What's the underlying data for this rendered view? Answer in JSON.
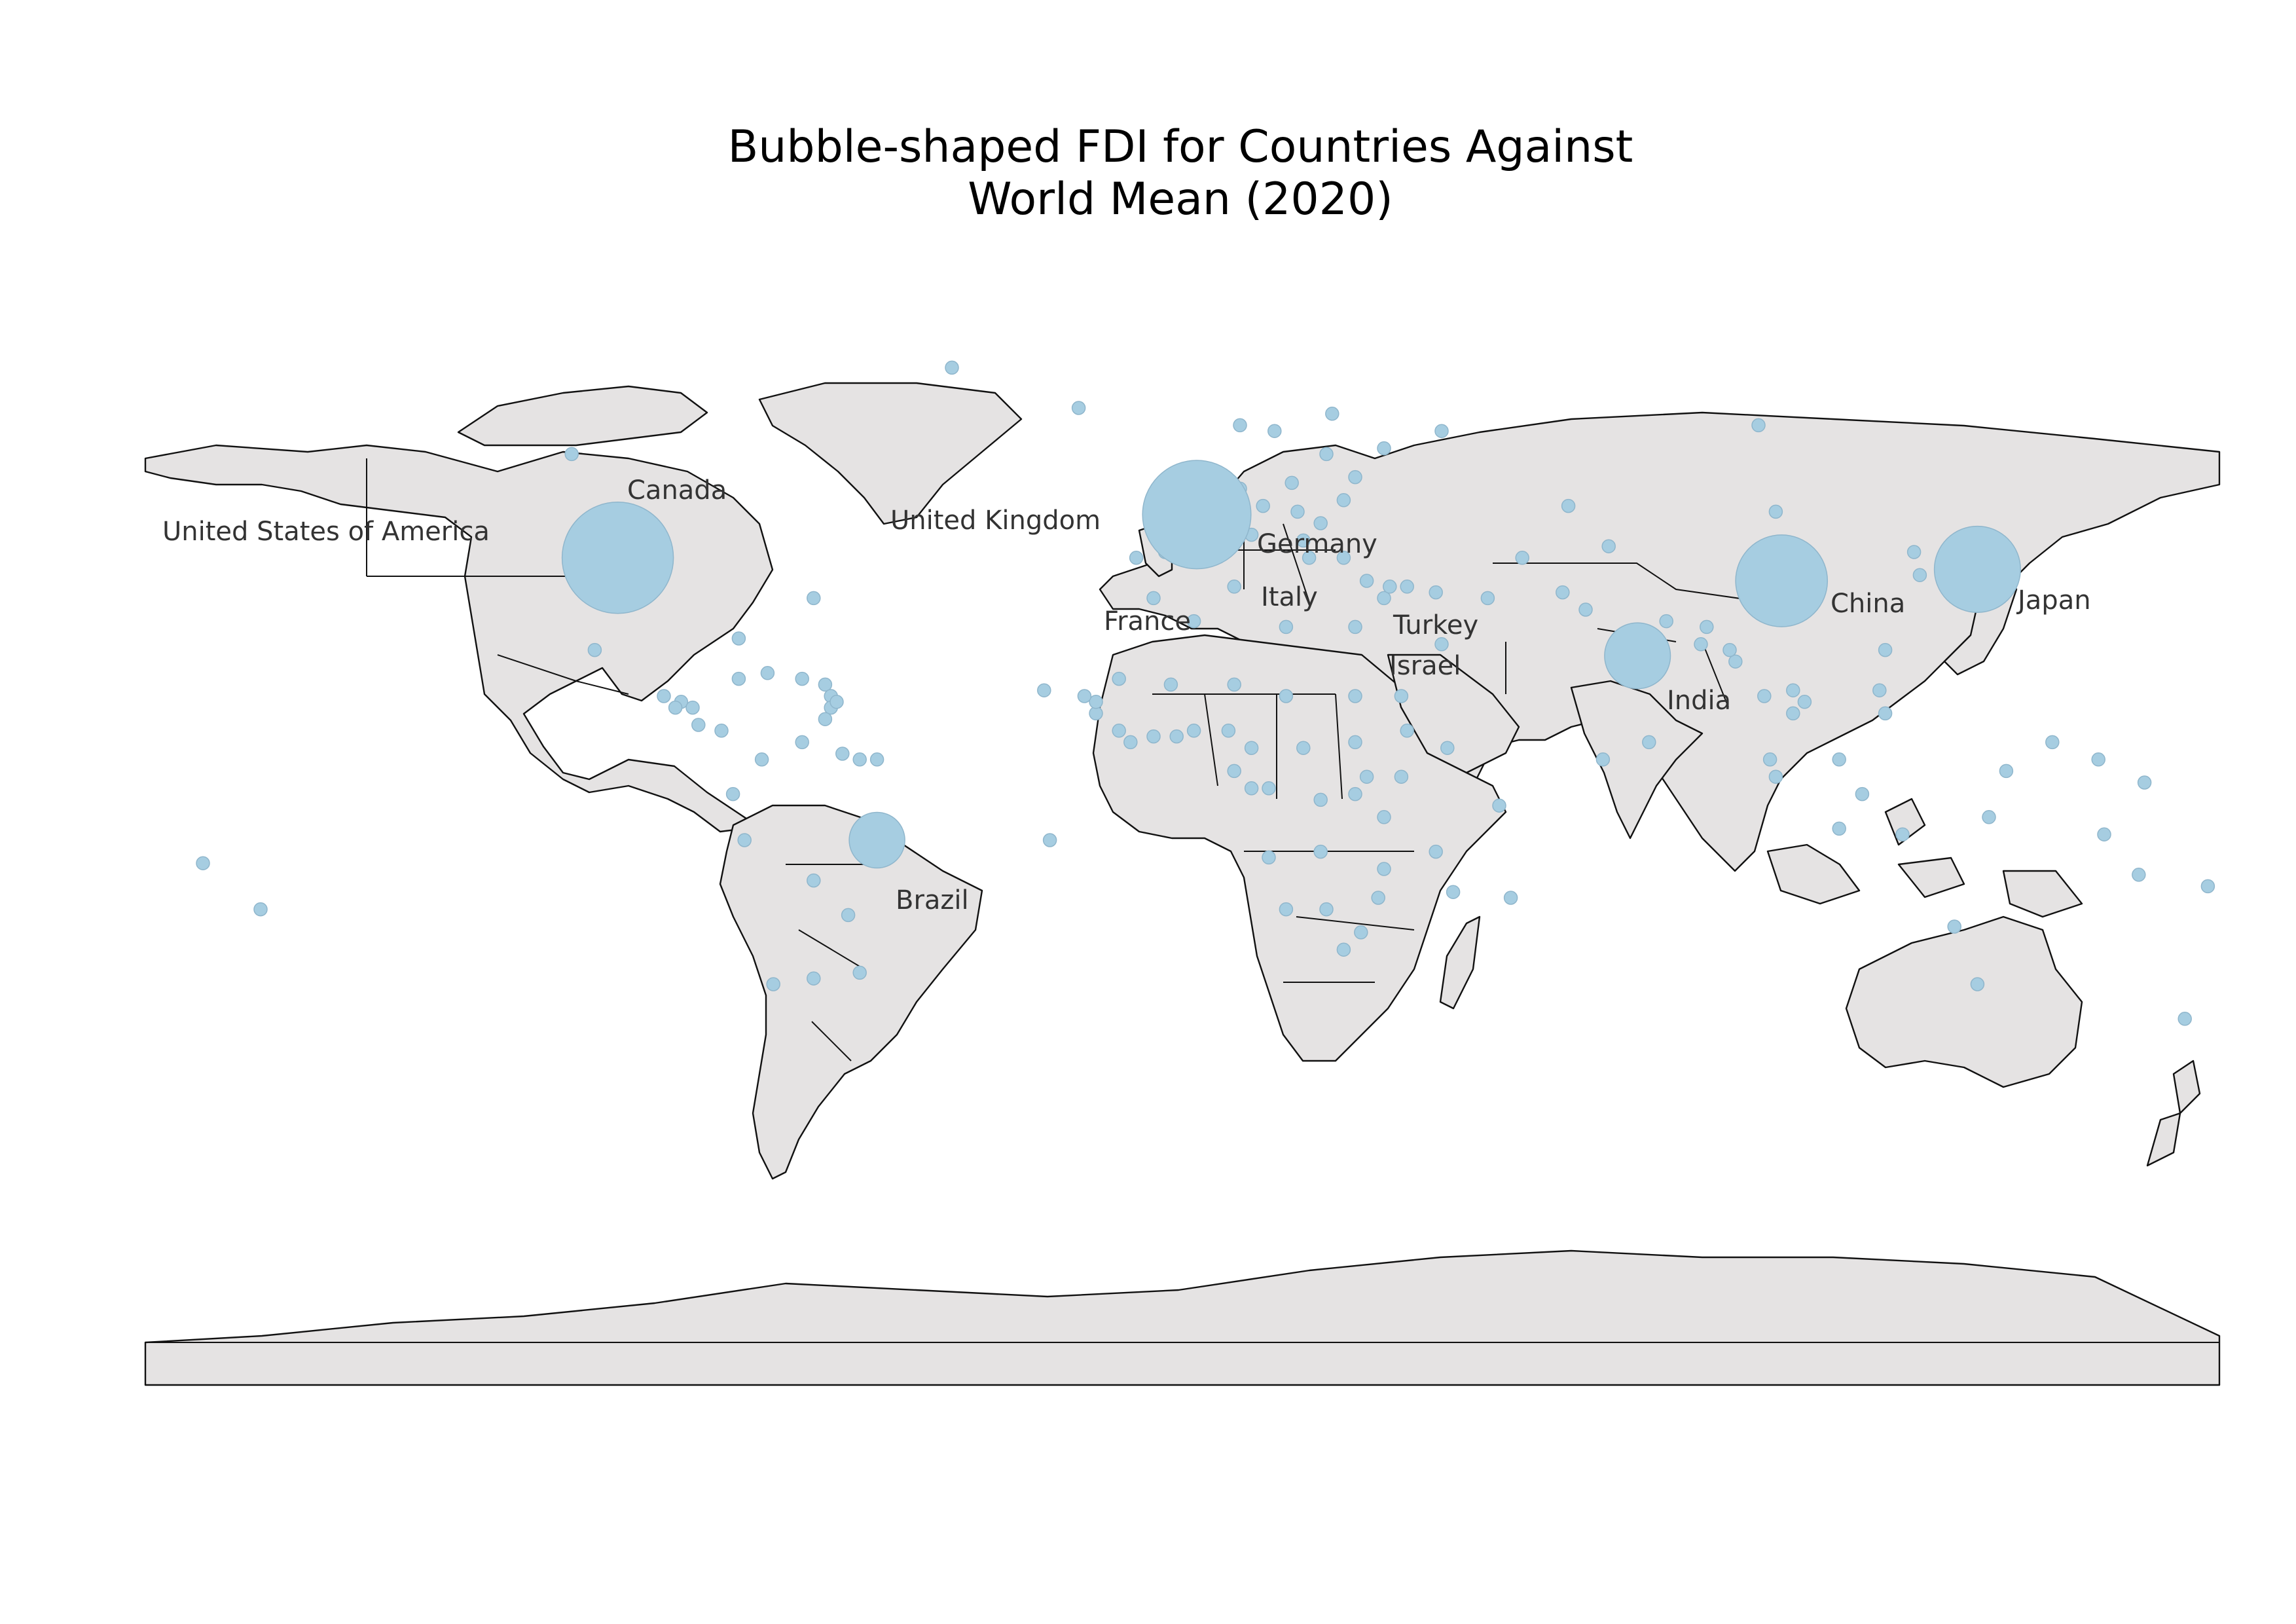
{
  "title": {
    "line1": "Bubble-shaped FDI for Countries Against",
    "line2": "World Mean (2020)"
  },
  "colors": {
    "land": "#e5e3e3",
    "border": "#111111",
    "bubble": "#a6cde1",
    "label": "#333333"
  },
  "labels": [
    {
      "key": "usa",
      "text": "United States of America"
    },
    {
      "key": "canada",
      "text": "Canada"
    },
    {
      "key": "uk",
      "text": "United Kingdom"
    },
    {
      "key": "germany",
      "text": "Germany"
    },
    {
      "key": "france",
      "text": "France"
    },
    {
      "key": "italy",
      "text": "Italy"
    },
    {
      "key": "turkey",
      "text": "Turkey"
    },
    {
      "key": "israel",
      "text": "Israel"
    },
    {
      "key": "china",
      "text": "China"
    },
    {
      "key": "japan",
      "text": "Japan"
    },
    {
      "key": "india",
      "text": "India"
    },
    {
      "key": "brazil",
      "text": "Brazil"
    }
  ],
  "major_bubbles": [
    {
      "country": "United States of America",
      "lon": -98,
      "lat": 39,
      "size": 1.0
    },
    {
      "country": "France",
      "lon": 2.5,
      "lat": 46.5,
      "size": 0.95
    },
    {
      "country": "China",
      "lon": 104,
      "lat": 35,
      "size": 0.68
    },
    {
      "country": "Japan",
      "lon": 138,
      "lat": 37,
      "size": 0.6
    },
    {
      "country": "India",
      "lon": 79,
      "lat": 22,
      "size": 0.35
    },
    {
      "country": "Brazil",
      "lon": -53,
      "lat": -10,
      "size": 0.25
    }
  ],
  "minor_bubbles": [
    [
      -40,
      72
    ],
    [
      -106,
      57
    ],
    [
      -18,
      65
    ],
    [
      100,
      62
    ],
    [
      10,
      62
    ],
    [
      26,
      64
    ],
    [
      16,
      61
    ],
    [
      45,
      61
    ],
    [
      35,
      58
    ],
    [
      30,
      53
    ],
    [
      25,
      57
    ],
    [
      28,
      49
    ],
    [
      19,
      52
    ],
    [
      10,
      51
    ],
    [
      14,
      48
    ],
    [
      20,
      47
    ],
    [
      24,
      45
    ],
    [
      21,
      42
    ],
    [
      3,
      50
    ],
    [
      5,
      52
    ],
    [
      8,
      47
    ],
    [
      -3,
      40
    ],
    [
      -8,
      39
    ],
    [
      12,
      43
    ],
    [
      22,
      39
    ],
    [
      28,
      39
    ],
    [
      32,
      35
    ],
    [
      35,
      32
    ],
    [
      36,
      34
    ],
    [
      39,
      34
    ],
    [
      44,
      33
    ],
    [
      45,
      24
    ],
    [
      53,
      32
    ],
    [
      66,
      33
    ],
    [
      70,
      30
    ],
    [
      84,
      28
    ],
    [
      90,
      24
    ],
    [
      96,
      21
    ],
    [
      101,
      15
    ],
    [
      106,
      16
    ],
    [
      106,
      12
    ],
    [
      108,
      14
    ],
    [
      128,
      36
    ],
    [
      127,
      40
    ],
    [
      122,
      23
    ],
    [
      122,
      12
    ],
    [
      114,
      4
    ],
    [
      102,
      4
    ],
    [
      118,
      -2
    ],
    [
      140,
      -6
    ],
    [
      160,
      -9
    ],
    [
      166,
      -16
    ],
    [
      178,
      -18
    ],
    [
      174,
      -41
    ],
    [
      134,
      -25
    ],
    [
      143,
      2
    ],
    [
      151,
      7
    ],
    [
      159,
      4
    ],
    [
      167,
      0
    ],
    [
      -170,
      -14
    ],
    [
      -160,
      -22
    ],
    [
      -102,
      23
    ],
    [
      -90,
      15
    ],
    [
      -87,
      14
    ],
    [
      -85,
      13
    ],
    [
      -88,
      13
    ],
    [
      -84,
      10
    ],
    [
      -80,
      9
    ],
    [
      -77,
      18
    ],
    [
      -72,
      19
    ],
    [
      -66,
      18
    ],
    [
      -62,
      17
    ],
    [
      -61,
      15
    ],
    [
      -61,
      13
    ],
    [
      -62,
      11
    ],
    [
      -73,
      4
    ],
    [
      -66,
      7
    ],
    [
      -59,
      5
    ],
    [
      -56,
      4
    ],
    [
      -53,
      4
    ],
    [
      -78,
      -2
    ],
    [
      -76,
      -10
    ],
    [
      -64,
      -17
    ],
    [
      -58,
      -23
    ],
    [
      -56,
      -33
    ],
    [
      -64,
      -34
    ],
    [
      -71,
      -35
    ],
    [
      -5,
      32
    ],
    [
      2,
      28
    ],
    [
      9,
      34
    ],
    [
      18,
      27
    ],
    [
      30,
      27
    ],
    [
      38,
      15
    ],
    [
      39,
      9
    ],
    [
      46,
      6
    ],
    [
      38,
      1
    ],
    [
      32,
      1
    ],
    [
      30,
      -2
    ],
    [
      35,
      -6
    ],
    [
      24,
      -12
    ],
    [
      24,
      -3
    ],
    [
      15,
      -1
    ],
    [
      12,
      -1
    ],
    [
      9,
      2
    ],
    [
      8,
      9
    ],
    [
      2,
      9
    ],
    [
      -1,
      8
    ],
    [
      -5,
      8
    ],
    [
      -9,
      7
    ],
    [
      -11,
      9
    ],
    [
      -15,
      12
    ],
    [
      -15,
      14
    ],
    [
      -17,
      15
    ],
    [
      -11,
      18
    ],
    [
      -2,
      17
    ],
    [
      9,
      17
    ],
    [
      18,
      15
    ],
    [
      30,
      15
    ],
    [
      30,
      7
    ],
    [
      21,
      6
    ],
    [
      12,
      6
    ],
    [
      15,
      -13
    ],
    [
      18,
      -22
    ],
    [
      25,
      -22
    ],
    [
      35,
      -15
    ],
    [
      34,
      -20
    ],
    [
      28,
      -29
    ],
    [
      31,
      -26
    ],
    [
      47,
      -19
    ],
    [
      57,
      -20
    ],
    [
      44,
      -12
    ],
    [
      55,
      -4
    ],
    [
      73,
      4
    ],
    [
      81,
      7
    ],
    [
      138,
      -35
    ],
    [
      -24,
      16
    ],
    [
      -23,
      -10
    ],
    [
      -60,
      14
    ],
    [
      -77,
      25
    ],
    [
      -64,
      32
    ],
    [
      103,
      1
    ],
    [
      114,
      -8
    ],
    [
      125,
      -9
    ],
    [
      121,
      16
    ],
    [
      91,
      27
    ],
    [
      74,
      41
    ],
    [
      59,
      39
    ],
    [
      67,
      48
    ],
    [
      103,
      47
    ],
    [
      95,
      23
    ]
  ]
}
